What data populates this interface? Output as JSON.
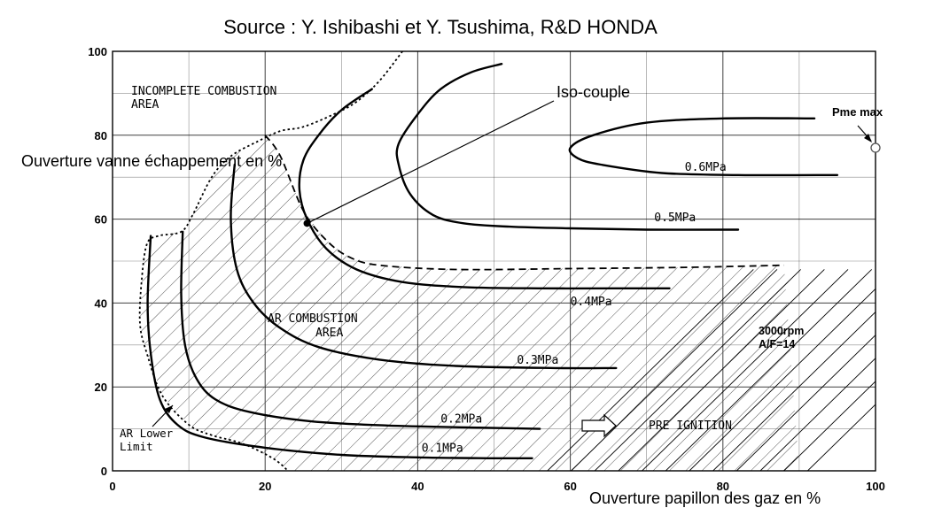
{
  "chart_data": {
    "type": "line",
    "title": "Source : Y. Ishibashi et Y. Tsushima, R&D HONDA",
    "xlabel": "Ouverture papillon des gaz en %",
    "ylabel": "Ouverture vanne échappement en %",
    "xlim": [
      0,
      100
    ],
    "ylim": [
      0,
      100
    ],
    "x_ticks": [
      0,
      20,
      40,
      60,
      80,
      100
    ],
    "y_ticks": [
      0,
      20,
      40,
      60,
      80,
      100
    ],
    "grid": true,
    "series": [
      {
        "name": "0.1MPa",
        "points": [
          [
            5,
            56
          ],
          [
            4.6,
            40
          ],
          [
            5,
            28
          ],
          [
            6.2,
            17
          ],
          [
            8.5,
            11
          ],
          [
            12,
            8
          ],
          [
            20,
            5.5
          ],
          [
            30,
            3.8
          ],
          [
            40,
            3.2
          ],
          [
            50,
            3
          ],
          [
            55,
            3
          ]
        ]
      },
      {
        "name": "0.2MPa",
        "points": [
          [
            9.2,
            57
          ],
          [
            9,
            42
          ],
          [
            9.5,
            30
          ],
          [
            11,
            22
          ],
          [
            13.5,
            17
          ],
          [
            18,
            14
          ],
          [
            26,
            11.8
          ],
          [
            36,
            10.8
          ],
          [
            48,
            10.3
          ],
          [
            56,
            10
          ]
        ]
      },
      {
        "name": "0.3MPa",
        "points": [
          [
            16,
            73
          ],
          [
            15.5,
            60
          ],
          [
            16.3,
            48
          ],
          [
            18.5,
            40
          ],
          [
            22,
            34
          ],
          [
            27,
            29.5
          ],
          [
            35,
            26.5
          ],
          [
            45,
            25
          ],
          [
            58,
            24.5
          ],
          [
            66,
            24.5
          ]
        ]
      },
      {
        "name": "0.4MPa",
        "points": [
          [
            34,
            91
          ],
          [
            30,
            86
          ],
          [
            27,
            80
          ],
          [
            25,
            74
          ],
          [
            24.5,
            67
          ],
          [
            25.5,
            60
          ],
          [
            28,
            53
          ],
          [
            32,
            48
          ],
          [
            38,
            45
          ],
          [
            46,
            43.8
          ],
          [
            56,
            43.5
          ],
          [
            66,
            43.5
          ],
          [
            73,
            43.5
          ]
        ]
      },
      {
        "name": "0.5MPa",
        "points": [
          [
            51,
            97
          ],
          [
            47,
            95
          ],
          [
            43,
            91
          ],
          [
            40,
            85
          ],
          [
            37.5,
            78
          ],
          [
            37.5,
            73
          ],
          [
            39,
            66
          ],
          [
            42,
            61
          ],
          [
            46,
            59
          ],
          [
            52,
            58.2
          ],
          [
            60,
            57.8
          ],
          [
            70,
            57.5
          ],
          [
            82,
            57.5
          ]
        ]
      },
      {
        "name": "0.6MPa",
        "points": [
          [
            92,
            84
          ],
          [
            80,
            84
          ],
          [
            70,
            83
          ],
          [
            63,
            80
          ],
          [
            60,
            77
          ],
          [
            61,
            74.5
          ],
          [
            64,
            73
          ],
          [
            72,
            71
          ],
          [
            82,
            70.5
          ],
          [
            95,
            70.5
          ]
        ]
      }
    ],
    "boundaries": [
      {
        "name": "incomplete_combustion_limit",
        "style": "dashed",
        "points": [
          [
            20,
            80
          ],
          [
            22,
            75
          ],
          [
            25,
            62
          ],
          [
            28,
            55
          ],
          [
            31,
            51
          ],
          [
            35,
            49
          ],
          [
            45,
            48
          ],
          [
            60,
            48.2
          ],
          [
            75,
            48.5
          ],
          [
            88,
            49
          ]
        ]
      },
      {
        "name": "knock_limit",
        "style": "dotted",
        "points": [
          [
            38,
            100
          ],
          [
            35,
            93
          ],
          [
            32,
            88
          ],
          [
            29,
            85
          ],
          [
            25,
            82
          ],
          [
            22,
            81
          ],
          [
            19,
            78.5
          ],
          [
            15.5,
            75
          ],
          [
            13,
            70
          ],
          [
            10.5,
            61
          ],
          [
            9,
            57
          ],
          [
            6,
            56
          ],
          [
            4.5,
            54
          ],
          [
            3.8,
            45
          ],
          [
            3.6,
            35
          ],
          [
            4.5,
            28
          ],
          [
            6.5,
            18
          ],
          [
            10,
            11
          ],
          [
            13,
            8.5
          ],
          [
            17,
            6.5
          ],
          [
            21,
            3
          ],
          [
            23,
            0
          ]
        ]
      }
    ],
    "annotations": {
      "incomplete_line1": "INCOMPLETE COMBUSTION",
      "incomplete_line2": "AREA",
      "ar_line1": "AR COMBUSTION",
      "ar_line2": "AREA",
      "ar_lower_line1": "AR Lower",
      "ar_lower_line2": "Limit",
      "pre_ignition": "PRE IGNITION",
      "conditions_line1": "3000rpm",
      "conditions_line2": "A/F=14",
      "iso_couple": "Iso-couple",
      "pme_max": "Pme max"
    },
    "points_of_interest": [
      {
        "name": "iso_couple_point",
        "x": 25.5,
        "y": 59
      },
      {
        "name": "pme_max_point",
        "x": 100,
        "y": 77
      }
    ],
    "colors": {
      "line": "#000000",
      "hatch": "#555555",
      "background": "#ffffff"
    }
  }
}
